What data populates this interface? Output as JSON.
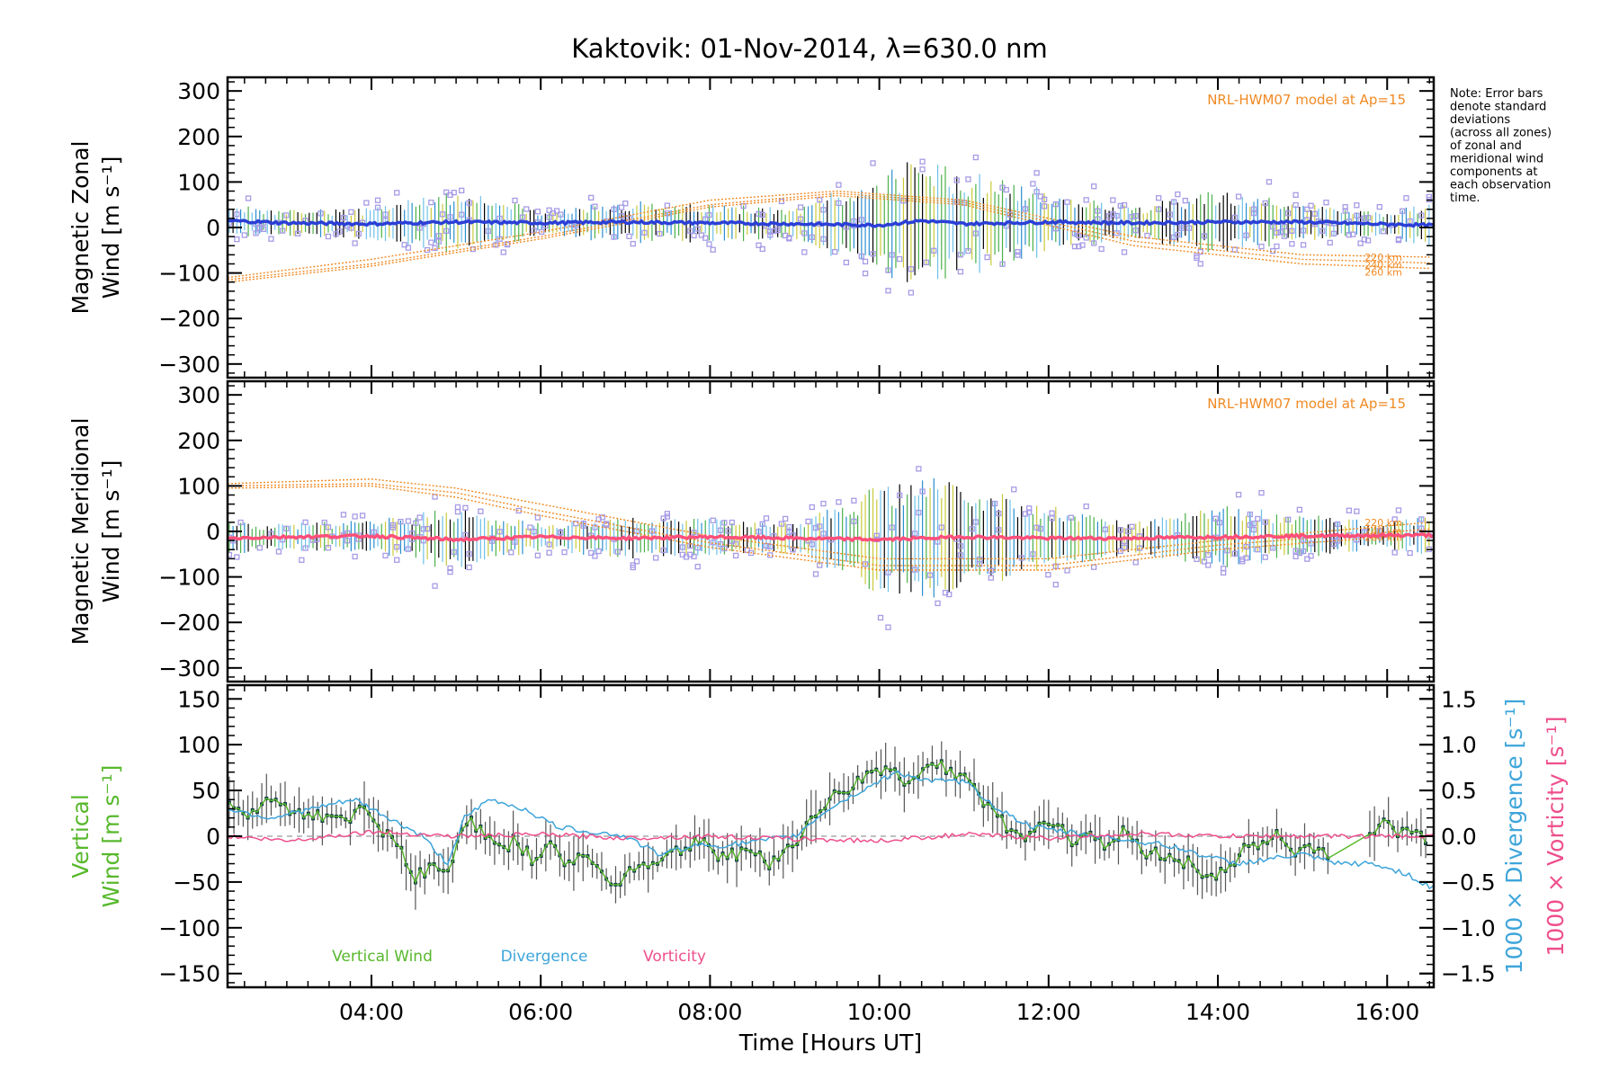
{
  "title": "Kaktovik: 01-Nov-2014, λ=630.0 nm",
  "note_lines": [
    "Note: Error bars",
    "denote standard",
    "deviations",
    "(across all zones)",
    "of zonal and",
    "meridional wind",
    "components at",
    "each observation",
    "time."
  ],
  "colors": {
    "zonal": "#2b3fd6",
    "meridional": "#ff4f7a",
    "model": "#f08a24",
    "scatter": "#a69be6",
    "vertical": "#58b82c",
    "divergence": "#3ea5da",
    "vorticity": "#ee4f8c",
    "errorbar": "#555555",
    "points": "#123a46",
    "zero": "#999999"
  },
  "x_ticks": [
    "04:00",
    "06:00",
    "08:00",
    "10:00",
    "12:00",
    "14:00",
    "16:00"
  ],
  "x_tick_values": [
    4,
    6,
    8,
    10,
    12,
    14,
    16
  ],
  "xlabel": "Time [Hours UT]",
  "xlim": [
    2.3,
    16.55
  ],
  "chart_data": [
    {
      "type": "scatter",
      "ylabel_lines": [
        "Magnetic Zonal",
        "Wind [m s⁻¹]"
      ],
      "ylim": [
        -330,
        330
      ],
      "y_ticks": [
        "300",
        "200",
        "100",
        "0",
        "−100",
        "−200",
        "−300"
      ],
      "y_tick_values": [
        300,
        200,
        100,
        0,
        -100,
        -200,
        -300
      ],
      "model_label": "NRL-HWM07 model at Ap=15",
      "model_altitudes": [
        "220 km",
        "240 km",
        "260 km"
      ],
      "series": [
        {
          "name": "mean",
          "x": [
            2.3,
            3,
            4,
            5,
            6,
            7,
            8,
            9,
            10,
            10.5,
            11,
            12,
            13,
            14,
            15,
            15.8,
            16.5
          ],
          "y": [
            15,
            10,
            8,
            12,
            10,
            12,
            10,
            8,
            5,
            15,
            8,
            12,
            10,
            12,
            12,
            8,
            5
          ]
        }
      ],
      "spread": [
        {
          "x": [
            2.3,
            3,
            4,
            5,
            6,
            7,
            8,
            9,
            10,
            10.5,
            11,
            12,
            13,
            14,
            15,
            16,
            16.5
          ],
          "sd": [
            30,
            25,
            30,
            60,
            25,
            40,
            35,
            30,
            100,
            120,
            100,
            60,
            30,
            60,
            40,
            25,
            40
          ]
        }
      ],
      "model_curves": [
        {
          "name": "220 km",
          "x": [
            2.3,
            4,
            6,
            8,
            9.5,
            11,
            13,
            15,
            16.5
          ],
          "y": [
            -110,
            -70,
            -10,
            60,
            80,
            60,
            -20,
            -60,
            -65
          ]
        },
        {
          "name": "240 km",
          "x": [
            2.3,
            4,
            6,
            8,
            9.5,
            11,
            13,
            15,
            16.5
          ],
          "y": [
            -115,
            -80,
            -20,
            50,
            75,
            55,
            -30,
            -70,
            -78
          ]
        },
        {
          "name": "260 km",
          "x": [
            2.3,
            4,
            6,
            8,
            9.5,
            11,
            13,
            15,
            16.5
          ],
          "y": [
            -120,
            -85,
            -25,
            45,
            70,
            50,
            -40,
            -80,
            -90
          ]
        }
      ]
    },
    {
      "type": "scatter",
      "ylabel_lines": [
        "Magnetic Meridional",
        "Wind [m s⁻¹]"
      ],
      "ylim": [
        -330,
        330
      ],
      "y_ticks": [
        "300",
        "200",
        "100",
        "0",
        "−100",
        "−200",
        "−300"
      ],
      "y_tick_values": [
        300,
        200,
        100,
        0,
        -100,
        -200,
        -300
      ],
      "model_label": "NRL-HWM07 model at Ap=15",
      "model_altitudes": [
        "220 km",
        "240 km",
        "260 km"
      ],
      "series": [
        {
          "name": "mean",
          "x": [
            2.3,
            3,
            4,
            5,
            6,
            7,
            8,
            9,
            10,
            11,
            12,
            13,
            14,
            15,
            16.5
          ],
          "y": [
            -15,
            -12,
            -10,
            -18,
            -12,
            -15,
            -12,
            -15,
            -18,
            -12,
            -15,
            -15,
            -12,
            -10,
            -8
          ]
        }
      ],
      "spread": [
        {
          "x": [
            2.3,
            3,
            4,
            5,
            6,
            7,
            8,
            9,
            10,
            10.5,
            11,
            12,
            13,
            14,
            15,
            16,
            16.5
          ],
          "sd": [
            30,
            25,
            30,
            60,
            25,
            40,
            35,
            30,
            100,
            120,
            100,
            60,
            30,
            60,
            40,
            25,
            40
          ]
        }
      ],
      "model_curves": [
        {
          "name": "220 km",
          "x": [
            2.3,
            4,
            5,
            6,
            8,
            10,
            12,
            14,
            16.5
          ],
          "y": [
            105,
            115,
            95,
            60,
            -10,
            -60,
            -60,
            -20,
            20
          ]
        },
        {
          "name": "240 km",
          "x": [
            2.3,
            4,
            5,
            6,
            8,
            10,
            12,
            14,
            16.5
          ],
          "y": [
            100,
            105,
            85,
            45,
            -25,
            -75,
            -75,
            -30,
            5
          ]
        },
        {
          "name": "260 km",
          "x": [
            2.3,
            4,
            5,
            6,
            8,
            10,
            12,
            14,
            16.5
          ],
          "y": [
            95,
            100,
            75,
            35,
            -35,
            -85,
            -85,
            -40,
            -5
          ]
        }
      ]
    },
    {
      "type": "line",
      "ylabel_lines": [
        "Vertical",
        "Wind [m s⁻¹]"
      ],
      "ylim": [
        -165,
        165
      ],
      "y_ticks": [
        "150",
        "100",
        "50",
        "0",
        "−50",
        "−100",
        "−150"
      ],
      "y_tick_values": [
        150,
        100,
        50,
        0,
        -50,
        -100,
        -150
      ],
      "y2_ticks": [
        "1.5",
        "1.0",
        "0.5",
        "0.0",
        "−0.5",
        "−1.0",
        "−1.5"
      ],
      "y2_tick_values": [
        1.5,
        1.0,
        0.5,
        0.0,
        -0.5,
        -1.0,
        -1.5
      ],
      "y2lim": [
        -1.5,
        1.5
      ],
      "y2label_div": "1000 × Divergence [s⁻¹]",
      "y2label_vor": "1000 × Vorticity [s⁻¹]",
      "legend": [
        "Vertical Wind",
        "Divergence",
        "Vorticity"
      ],
      "series": [
        {
          "name": "Vertical Wind",
          "x": [
            2.3,
            2.5,
            2.8,
            3.0,
            3.3,
            3.6,
            3.9,
            4.1,
            4.3,
            4.5,
            4.7,
            4.9,
            5.1,
            5.3,
            5.5,
            5.7,
            5.9,
            6.1,
            6.3,
            6.5,
            6.7,
            6.9,
            7.1,
            7.3,
            7.5,
            7.7,
            7.9,
            8.1,
            8.3,
            8.5,
            8.7,
            8.9,
            9.1,
            9.3,
            9.5,
            9.7,
            9.9,
            10.1,
            10.3,
            10.5,
            10.7,
            10.9,
            11.1,
            11.3,
            11.5,
            11.7,
            11.9,
            12.1,
            12.3,
            12.5,
            12.7,
            12.9,
            13.1,
            13.3,
            13.5,
            13.7,
            13.9,
            14.1,
            14.3,
            14.5,
            14.7,
            14.9,
            15.1,
            15.3,
            15.5,
            15.7,
            15.9,
            16.1,
            16.3,
            16.5
          ],
          "y": [
            35,
            20,
            40,
            30,
            25,
            15,
            30,
            10,
            -5,
            -45,
            -35,
            -40,
            20,
            5,
            -15,
            -5,
            -25,
            -10,
            -30,
            -20,
            -40,
            -50,
            -35,
            -30,
            -20,
            -15,
            0,
            -25,
            -20,
            -15,
            -30,
            -15,
            5,
            30,
            45,
            55,
            70,
            75,
            60,
            72,
            80,
            70,
            55,
            30,
            10,
            -5,
            20,
            10,
            -5,
            5,
            -10,
            5,
            -15,
            -20,
            -25,
            -30,
            -45,
            -40,
            -15,
            -5,
            0,
            -20,
            -10,
            -20,
            -10,
            -10,
            15,
            5,
            5,
            -5
          ]
        },
        {
          "name": "Divergence",
          "x": [
            2.3,
            2.8,
            3.3,
            3.8,
            4.2,
            4.6,
            4.9,
            5.1,
            5.4,
            5.8,
            6.2,
            6.6,
            7.0,
            7.4,
            7.8,
            8.2,
            8.6,
            9.0,
            9.4,
            9.8,
            10.2,
            10.6,
            11.0,
            11.4,
            11.8,
            12.2,
            12.6,
            13.0,
            13.4,
            13.8,
            14.2,
            14.6,
            15.0,
            15.4,
            15.8,
            16.2,
            16.5
          ],
          "y": [
            0.3,
            0.2,
            0.3,
            0.4,
            0.2,
            0,
            -0.3,
            0.2,
            0.4,
            0.3,
            0.1,
            0.05,
            0,
            -0.2,
            -0.1,
            -0.1,
            -0.05,
            0,
            0.3,
            0.5,
            0.7,
            0.6,
            0.6,
            0.3,
            0.1,
            0.05,
            0,
            -0.05,
            -0.1,
            -0.2,
            -0.3,
            -0.25,
            -0.2,
            -0.3,
            -0.3,
            -0.4,
            -0.55
          ]
        },
        {
          "name": "Vorticity",
          "x": [
            2.3,
            3,
            4,
            5,
            6,
            7,
            8,
            9,
            10,
            11,
            12,
            13,
            14,
            15,
            16,
            16.5
          ],
          "y": [
            0,
            -0.05,
            0.05,
            0,
            0.02,
            -0.02,
            0,
            -0.03,
            -0.05,
            0.02,
            -0.02,
            0.03,
            0,
            0,
            0,
            0
          ]
        }
      ]
    }
  ]
}
